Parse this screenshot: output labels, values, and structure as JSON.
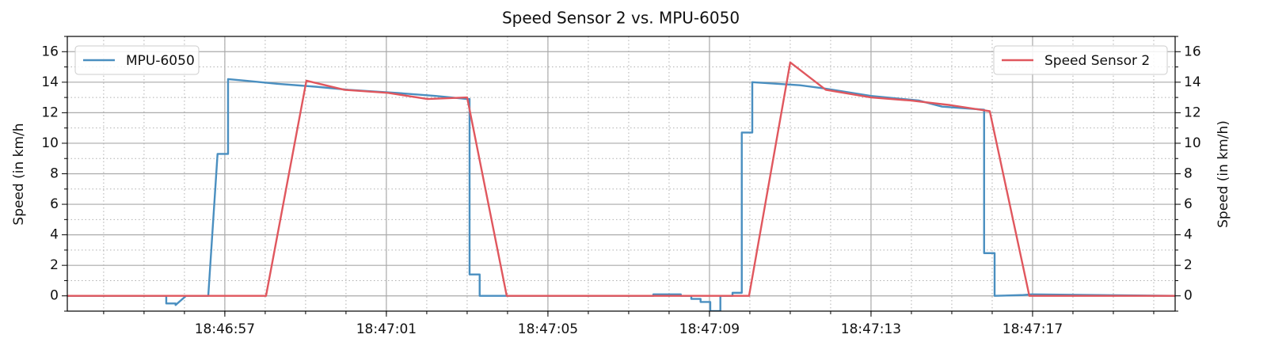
{
  "chart_data": {
    "type": "line",
    "title": "Speed Sensor 2 vs. MPU-6050",
    "y_label": "Speed (in km/h",
    "y2_label": "Speed (in km/h)",
    "xlim": [
      "18:46:53.10",
      "18:47:20.53"
    ],
    "xticks": [
      "18:46:57",
      "18:47:01",
      "18:47:05",
      "18:47:09",
      "18:47:13",
      "18:47:17"
    ],
    "ylim": [
      -1,
      17
    ],
    "yticks": [
      0,
      2,
      4,
      6,
      8,
      10,
      12,
      14,
      16
    ],
    "y2lim": [
      -1,
      17
    ],
    "y2ticks": [
      0,
      2,
      4,
      6,
      8,
      10,
      12,
      14,
      16
    ],
    "grid": true,
    "minor_grid": true,
    "series": [
      {
        "name": "MPU-6050",
        "color": "#4a8fc0",
        "axis": "y",
        "legend": "upper left",
        "x": [
          "18:46:53.10",
          "18:46:55.55",
          "18:46:55.55",
          "18:46:55.78",
          "18:46:55.78",
          "18:46:56.04",
          "18:46:56.59",
          "18:46:56.82",
          "18:46:57.08",
          "18:46:57.08",
          "18:46:57.51",
          "18:46:58.29",
          "18:46:59.27",
          "18:47:00.06",
          "18:47:01.24",
          "18:47:02.22",
          "18:47:03.00",
          "18:47:03.06",
          "18:47:03.06",
          "18:47:03.31",
          "18:47:03.31",
          "18:47:03.98",
          "18:47:07.61",
          "18:47:07.61",
          "18:47:08.29",
          "18:47:08.29",
          "18:47:08.55",
          "18:47:08.55",
          "18:47:08.78",
          "18:47:08.78",
          "18:47:09.02",
          "18:47:09.02",
          "18:47:09.27",
          "18:47:09.27",
          "18:47:09.57",
          "18:47:09.57",
          "18:47:09.80",
          "18:47:09.80",
          "18:47:10.06",
          "18:47:10.06",
          "18:47:11.24",
          "18:47:11.82",
          "18:47:13.00",
          "18:47:14.18",
          "18:47:14.76",
          "18:47:15.80",
          "18:47:15.80",
          "18:47:16.06",
          "18:47:16.06",
          "18:47:16.73",
          "18:47:16.98",
          "18:47:20.53"
        ],
        "values": [
          0,
          0,
          -0.5,
          -0.5,
          -0.6,
          0,
          0,
          9.3,
          9.3,
          14.2,
          14.1,
          13.9,
          13.7,
          13.5,
          13.3,
          13.1,
          12.9,
          12.9,
          1.4,
          1.4,
          0,
          0,
          0,
          0.1,
          0.1,
          0,
          0,
          -0.2,
          -0.2,
          -0.4,
          -0.4,
          -1,
          -1,
          0,
          0,
          0.2,
          0.2,
          10.7,
          10.7,
          14.0,
          13.8,
          13.6,
          13.1,
          12.8,
          12.4,
          12.2,
          2.8,
          2.8,
          0,
          0.05,
          0.1,
          0
        ]
      },
      {
        "name": "Speed Sensor 2",
        "color": "#e0575e",
        "axis": "y2",
        "legend": "upper right",
        "x": [
          "18:46:53.10",
          "18:46:58.02",
          "18:46:59.02",
          "18:46:59.96",
          "18:47:01.04",
          "18:47:02.02",
          "18:47:03.00",
          "18:47:03.98",
          "18:47:09.98",
          "18:47:11.00",
          "18:47:11.88",
          "18:47:13.00",
          "18:47:13.98",
          "18:47:14.96",
          "18:47:15.94",
          "18:47:16.92",
          "18:47:20.53"
        ],
        "values": [
          0,
          0,
          14.1,
          13.5,
          13.3,
          12.9,
          13.0,
          0,
          0,
          15.3,
          13.5,
          13.0,
          12.8,
          12.5,
          12.1,
          0,
          0
        ]
      }
    ]
  }
}
